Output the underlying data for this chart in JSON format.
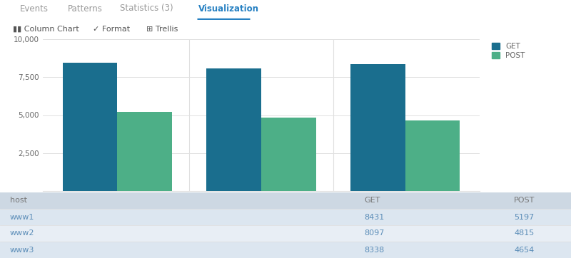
{
  "hosts": [
    "www1",
    "www2",
    "www3"
  ],
  "get_values": [
    8431,
    8097,
    8338
  ],
  "post_values": [
    5197,
    4815,
    4654
  ],
  "get_color": "#1A6E8E",
  "post_color": "#4DAF87",
  "bar_width": 0.38,
  "ylim": [
    0,
    10000
  ],
  "yticks": [
    0,
    2500,
    5000,
    7500,
    10000
  ],
  "ytick_labels": [
    "",
    "2,500",
    "5,000",
    "7,500",
    "10,000"
  ],
  "xlabel": "host",
  "legend_labels": [
    "GET",
    "POST"
  ],
  "bg_color": "#ffffff",
  "plot_bg_color": "#ffffff",
  "tab_labels": [
    "Events",
    "Patterns",
    "Statistics (3)",
    "Visualization"
  ],
  "active_tab": "Visualization",
  "active_tab_color": "#2680c2",
  "inactive_tab_color": "#999999",
  "subtab_labels": [
    "Column Chart",
    "Format",
    "Trellis"
  ],
  "table_headers": [
    "host",
    "GET",
    "POST"
  ],
  "table_rows": [
    [
      "www1",
      "8431",
      "5197"
    ],
    [
      "www2",
      "8097",
      "4815"
    ],
    [
      "www3",
      "8338",
      "4654"
    ]
  ],
  "grid_color": "#e0e0e0",
  "label_color": "#666666",
  "separator_color": "#dddddd",
  "table_header_bg": "#cdd8e3",
  "table_row1_bg": "#dce6f0",
  "table_row2_bg": "#e8eef5",
  "table_text_color": "#5b8db8",
  "table_header_text_color": "#777777",
  "underline_color": "#2680c2"
}
